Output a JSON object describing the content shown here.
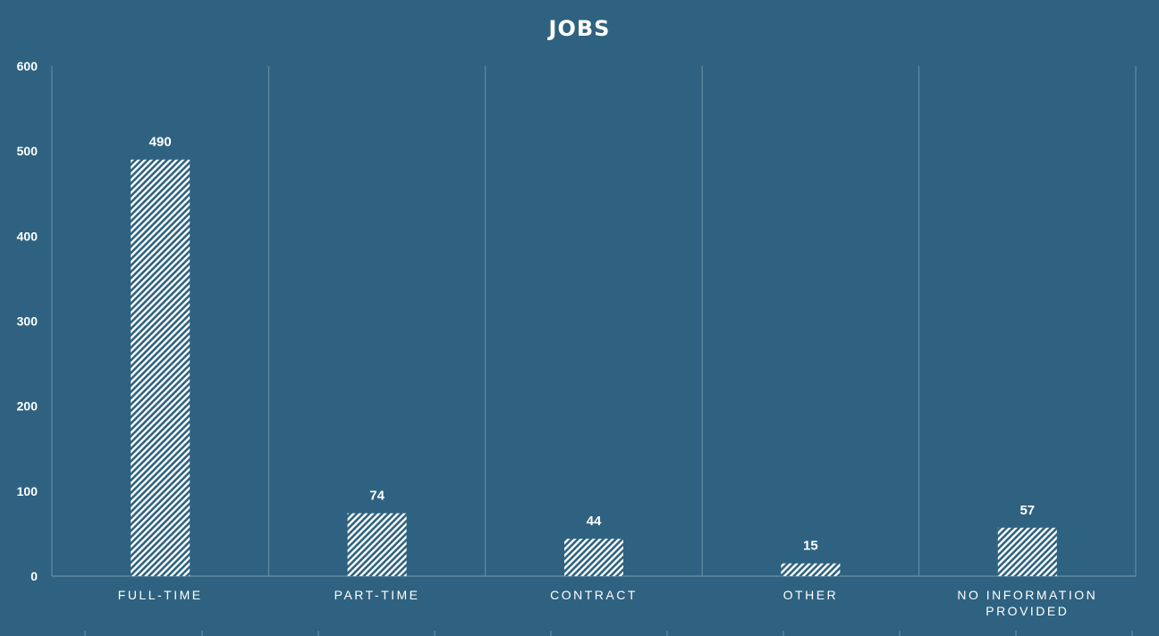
{
  "colors": {
    "background": "#2e6280",
    "grid": "#6d93aa",
    "bar_stroke": "#ffffff",
    "text": "#ffffff"
  },
  "chart_data": {
    "type": "bar",
    "title": "JOBS",
    "xlabel": "",
    "ylabel": "",
    "categories": [
      "FULL-TIME",
      "PART-TIME",
      "CONTRACT",
      "OTHER",
      "NO INFORMATION PROVIDED"
    ],
    "category_lines": [
      [
        "FULL-TIME"
      ],
      [
        "PART-TIME"
      ],
      [
        "CONTRACT"
      ],
      [
        "OTHER"
      ],
      [
        "NO INFORMATION",
        "PROVIDED"
      ]
    ],
    "values": [
      490,
      74,
      44,
      15,
      57
    ],
    "data_labels": [
      "490",
      "74",
      "44",
      "15",
      "57"
    ],
    "ylim": [
      0,
      600
    ],
    "y_ticks": [
      0,
      100,
      200,
      300,
      400,
      500,
      600
    ],
    "grid": "vertical category separators",
    "legend": "none",
    "bar_fill": "diagonal white hatch"
  }
}
